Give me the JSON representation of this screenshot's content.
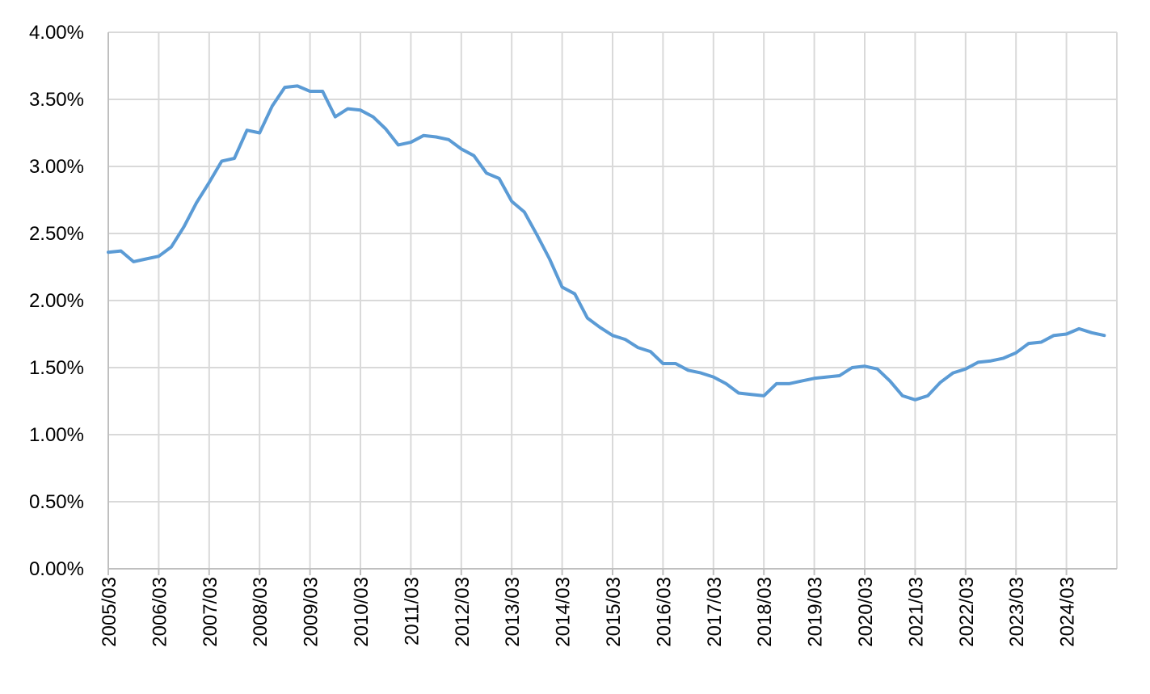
{
  "chart_data": {
    "type": "line",
    "title": "",
    "xlabel": "",
    "ylabel": "",
    "x_tick_labels": [
      "2005/03",
      "2006/03",
      "2007/03",
      "2008/03",
      "2009/03",
      "2010/03",
      "2011/03",
      "2012/03",
      "2013/03",
      "2014/03",
      "2015/03",
      "2016/03",
      "2017/03",
      "2018/03",
      "2019/03",
      "2020/03",
      "2021/03",
      "2022/03",
      "2023/03",
      "2024/03"
    ],
    "y_tick_labels": [
      "0.00%",
      "0.50%",
      "1.00%",
      "1.50%",
      "2.00%",
      "2.50%",
      "3.00%",
      "3.50%",
      "4.00%"
    ],
    "ylim": [
      0,
      4.0
    ],
    "y_unit": "%",
    "grid": true,
    "legend": "none",
    "series": [
      {
        "color": "#5b9bd5",
        "x": [
          "2005/03",
          "2005/06",
          "2005/09",
          "2005/12",
          "2006/03",
          "2006/06",
          "2006/09",
          "2006/12",
          "2007/03",
          "2007/06",
          "2007/09",
          "2007/12",
          "2008/03",
          "2008/06",
          "2008/09",
          "2008/12",
          "2009/03",
          "2009/06",
          "2009/09",
          "2009/12",
          "2010/03",
          "2010/06",
          "2010/09",
          "2010/12",
          "2011/03",
          "2011/06",
          "2011/09",
          "2011/12",
          "2012/03",
          "2012/06",
          "2012/09",
          "2012/12",
          "2013/03",
          "2013/06",
          "2013/09",
          "2013/12",
          "2014/03",
          "2014/06",
          "2014/09",
          "2014/12",
          "2015/03",
          "2015/06",
          "2015/09",
          "2015/12",
          "2016/03",
          "2016/06",
          "2016/09",
          "2016/12",
          "2017/03",
          "2017/06",
          "2017/09",
          "2017/12",
          "2018/03",
          "2018/06",
          "2018/09",
          "2018/12",
          "2019/03",
          "2019/06",
          "2019/09",
          "2019/12",
          "2020/03",
          "2020/06",
          "2020/09",
          "2020/12",
          "2021/03",
          "2021/06",
          "2021/09",
          "2021/12",
          "2022/03",
          "2022/06",
          "2022/09",
          "2022/12",
          "2023/03",
          "2023/06",
          "2023/09",
          "2023/12",
          "2024/03",
          "2024/06",
          "2024/09",
          "2024/12"
        ],
        "values": [
          2.36,
          2.37,
          2.29,
          2.31,
          2.33,
          2.4,
          2.55,
          2.73,
          2.88,
          3.04,
          3.06,
          3.27,
          3.25,
          3.45,
          3.59,
          3.6,
          3.56,
          3.56,
          3.37,
          3.43,
          3.42,
          3.37,
          3.28,
          3.16,
          3.18,
          3.23,
          3.22,
          3.2,
          3.13,
          3.08,
          2.95,
          2.91,
          2.74,
          2.66,
          2.49,
          2.31,
          2.1,
          2.05,
          1.87,
          1.8,
          1.74,
          1.71,
          1.65,
          1.62,
          1.53,
          1.53,
          1.48,
          1.46,
          1.43,
          1.38,
          1.31,
          1.3,
          1.29,
          1.38,
          1.38,
          1.4,
          1.42,
          1.43,
          1.44,
          1.5,
          1.51,
          1.49,
          1.4,
          1.29,
          1.26,
          1.29,
          1.39,
          1.46,
          1.49,
          1.54,
          1.55,
          1.57,
          1.61,
          1.68,
          1.69,
          1.74,
          1.75,
          1.79,
          1.76,
          1.74
        ]
      }
    ]
  }
}
